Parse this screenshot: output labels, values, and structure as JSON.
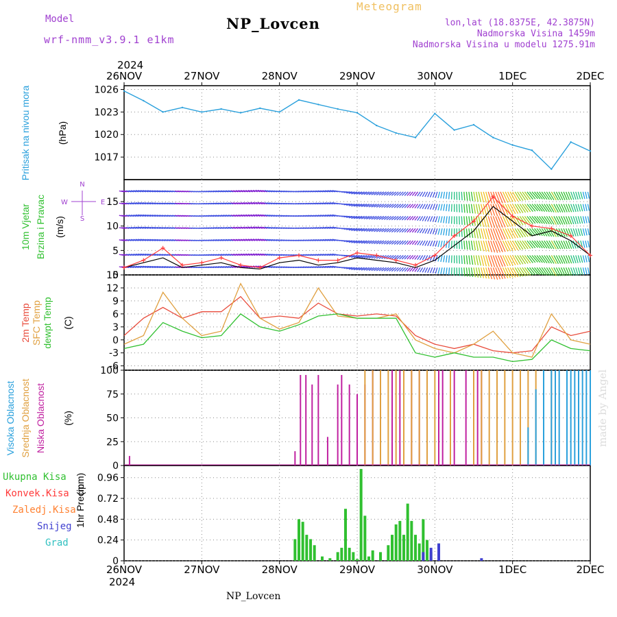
{
  "header": {
    "model_label": "Model",
    "model_name": "wrf-nmm_v3.9.1 e1km",
    "kind_label": "Meteogram",
    "station": "NP_Lovcen",
    "lonlat": "lon,lat (18.8375E, 42.3875N)",
    "altitude": "Nadmorska Visina 1459m",
    "model_altitude": "Nadmorska Visina u modelu 1275.91m",
    "footer_station": "NP_Lovcen",
    "credit": "made by Angel"
  },
  "colors": {
    "pressure": "#2aa0dc",
    "wind_speed": "#000000",
    "gust": "#ff3a3a",
    "t2m": "#e84a3a",
    "sfc": "#e0a040",
    "dewpt": "#30c030",
    "cloud_high": "#2aa0dc",
    "cloud_mid": "#e0a040",
    "cloud_low": "#c020a0",
    "precip_total": "#30c030",
    "precip_conv": "#ff3a3a",
    "precip_frz": "#ff8030",
    "precip_snow": "#4040d0",
    "precip_grad": "#30c0c0"
  },
  "chart_data": [
    {
      "id": "pressure",
      "type": "line",
      "ylabel": "Pritisak na nivou mora",
      "unit": "(hPa)",
      "ylim": [
        1014,
        1026.5
      ],
      "yticks": [
        1017,
        1020,
        1023,
        1026
      ],
      "x_labels_top": [
        "26NOV",
        "27NOV",
        "28NOV",
        "29NOV",
        "30NOV",
        "1DEC",
        "2DEC"
      ],
      "year_top": "2024",
      "x": [
        0,
        0.25,
        0.5,
        0.75,
        1,
        1.25,
        1.5,
        1.75,
        2,
        2.25,
        2.5,
        2.75,
        3,
        3.25,
        3.5,
        3.75,
        4,
        4.25,
        4.5,
        4.75,
        5,
        5.25,
        5.5,
        5.75,
        6
      ],
      "values": [
        1025.8,
        1024.5,
        1023,
        1023.6,
        1023,
        1023.4,
        1022.9,
        1023.5,
        1023,
        1024.6,
        1024,
        1023.4,
        1022.9,
        1021.2,
        1020.2,
        1019.6,
        1022.8,
        1020.6,
        1021.3,
        1019.6,
        1018.6,
        1017.9,
        1015.4,
        1019,
        1017.8
      ]
    },
    {
      "id": "wind",
      "type": "line",
      "ylabel": "10m Vjetar",
      "ylabel2": "Brzina i Pravac",
      "unit": "(m/s)",
      "compass_n": "N",
      "compass_w": "W",
      "compass_e": "E",
      "compass_s": "S",
      "ylim": [
        0,
        19.5
      ],
      "yticks": [
        0,
        5,
        10,
        15
      ],
      "x": [
        0,
        0.25,
        0.5,
        0.75,
        1,
        1.25,
        1.5,
        1.75,
        2,
        2.25,
        2.5,
        2.75,
        3,
        3.25,
        3.5,
        3.75,
        4,
        4.25,
        4.5,
        4.75,
        5,
        5.25,
        5.5,
        5.75,
        6
      ],
      "speed": [
        1.5,
        2.5,
        3.5,
        1.5,
        2,
        2.5,
        1.5,
        1.2,
        2.5,
        3,
        2,
        2.5,
        3.5,
        3,
        2.5,
        1.5,
        3,
        6,
        9,
        14,
        11,
        8,
        9,
        7,
        4
      ],
      "gust": [
        1.5,
        3,
        5.5,
        2,
        2.5,
        3.5,
        2,
        1.5,
        3.5,
        4,
        3,
        3,
        4.5,
        4,
        3,
        2,
        4,
        8,
        11,
        16,
        12,
        10,
        9.5,
        8,
        4
      ],
      "direction_deg": [
        280,
        285,
        280,
        280,
        275,
        280,
        285,
        290,
        280,
        275,
        280,
        285,
        250,
        240,
        230,
        220,
        200,
        180,
        170,
        160,
        150,
        140,
        150,
        160,
        170
      ]
    },
    {
      "id": "temperature",
      "type": "line",
      "ylabel_lines": [
        "2m Temp",
        "SFC Temp",
        "dewpt Temp"
      ],
      "unit": "(C)",
      "ylim": [
        -7,
        15
      ],
      "yticks": [
        -6,
        -3,
        0,
        3,
        6,
        9,
        12,
        15
      ],
      "x": [
        0,
        0.25,
        0.5,
        0.75,
        1,
        1.25,
        1.5,
        1.75,
        2,
        2.25,
        2.5,
        2.75,
        3,
        3.25,
        3.5,
        3.75,
        4,
        4.25,
        4.5,
        4.75,
        5,
        5.25,
        5.5,
        5.75,
        6
      ],
      "series": [
        {
          "name": "2m Temp",
          "values": [
            1,
            5,
            7.5,
            5,
            6.5,
            6.5,
            10,
            5,
            5.5,
            5,
            8.5,
            6,
            5.5,
            6,
            5.5,
            1,
            -1,
            -2,
            -1,
            -2.5,
            -3,
            -2.5,
            3,
            1,
            2
          ]
        },
        {
          "name": "SFC Temp",
          "values": [
            -1,
            1,
            11,
            5,
            1,
            2,
            13,
            5,
            2.5,
            4,
            12,
            5.5,
            5,
            5,
            6,
            0,
            -2,
            -3,
            -1,
            2,
            -3,
            -4,
            6,
            0,
            -1
          ]
        },
        {
          "name": "dewpt Temp",
          "values": [
            -2,
            -1,
            4,
            2,
            0.5,
            1,
            6,
            3,
            2,
            3.5,
            5.5,
            6,
            5,
            5,
            5,
            -3,
            -4,
            -3,
            -4,
            -4,
            -5,
            -4.5,
            0,
            -2,
            -2.5
          ]
        }
      ]
    },
    {
      "id": "clouds",
      "type": "bar",
      "ylabel_lines": [
        "Visoka Oblacnost",
        "Srednja Oblacnost",
        "Niska Oblacnost"
      ],
      "unit": "(%)",
      "ylim": [
        0,
        100
      ],
      "yticks": [
        0,
        25,
        50,
        75,
        100
      ],
      "low": {
        "x": [
          0.07,
          2.2,
          2.27,
          2.34,
          2.42,
          2.5,
          2.62,
          2.75,
          2.8,
          2.9,
          3.0,
          3.1,
          3.2,
          3.3,
          3.45,
          3.55,
          3.7,
          3.8,
          3.9,
          4.05,
          4.1,
          4.25,
          4.4,
          4.55,
          4.6
        ],
        "values": [
          10,
          15,
          95,
          95,
          85,
          95,
          30,
          85,
          95,
          85,
          75,
          85,
          100,
          100,
          100,
          100,
          100,
          100,
          100,
          100,
          100,
          100,
          100,
          100,
          100
        ]
      },
      "mid": {
        "x": [
          3.1,
          3.2,
          3.3,
          3.4,
          3.5,
          3.6,
          3.7,
          3.8,
          3.9,
          4.0,
          4.2,
          4.5,
          4.6,
          4.7,
          4.8,
          4.9,
          5.0,
          5.1,
          5.2,
          5.3,
          5.4,
          5.5
        ],
        "values": [
          100,
          100,
          100,
          100,
          100,
          100,
          100,
          100,
          100,
          100,
          100,
          100,
          100,
          100,
          100,
          100,
          100,
          100,
          100,
          100,
          100,
          100
        ]
      },
      "high": {
        "x": [
          5.2,
          5.3,
          5.4,
          5.5,
          5.55,
          5.6,
          5.7,
          5.75,
          5.8,
          5.85,
          5.9,
          5.95,
          6.0
        ],
        "values": [
          40,
          80,
          100,
          100,
          100,
          100,
          100,
          100,
          100,
          100,
          100,
          100,
          100
        ]
      }
    },
    {
      "id": "precip",
      "type": "bar",
      "legend": [
        "Ukupna Kisa",
        "Konvek.Kisa",
        "Zaledj.Kisa",
        "Snijeg",
        "Grad"
      ],
      "ylabel": "1hr Precip",
      "unit": "(mm)",
      "ylim": [
        0,
        1.1
      ],
      "yticks": [
        0,
        0.24,
        0.48,
        0.72,
        0.96
      ],
      "x_labels_bottom": [
        "26NOV",
        "27NOV",
        "28NOV",
        "29NOV",
        "30NOV",
        "1DEC",
        "2DEC"
      ],
      "year_bottom": "2024",
      "total": {
        "x": [
          2.2,
          2.25,
          2.3,
          2.35,
          2.4,
          2.45,
          2.55,
          2.65,
          2.75,
          2.8,
          2.85,
          2.9,
          2.95,
          3.0,
          3.05,
          3.1,
          3.15,
          3.2,
          3.3,
          3.4,
          3.45,
          3.5,
          3.55,
          3.6,
          3.65,
          3.7,
          3.75,
          3.8,
          3.85,
          3.9,
          3.95,
          4.05
        ],
        "values": [
          0.25,
          0.48,
          0.45,
          0.3,
          0.25,
          0.18,
          0.05,
          0.03,
          0.1,
          0.15,
          0.6,
          0.15,
          0.1,
          0.02,
          1.06,
          0.52,
          0.05,
          0.12,
          0.1,
          0.18,
          0.3,
          0.42,
          0.46,
          0.3,
          0.66,
          0.46,
          0.3,
          0.2,
          0.48,
          0.24,
          0.1,
          0.2
        ]
      },
      "snow": {
        "x": [
          3.85,
          3.95,
          4.05,
          4.6
        ],
        "values": [
          0.1,
          0.15,
          0.2,
          0.03
        ]
      }
    }
  ]
}
